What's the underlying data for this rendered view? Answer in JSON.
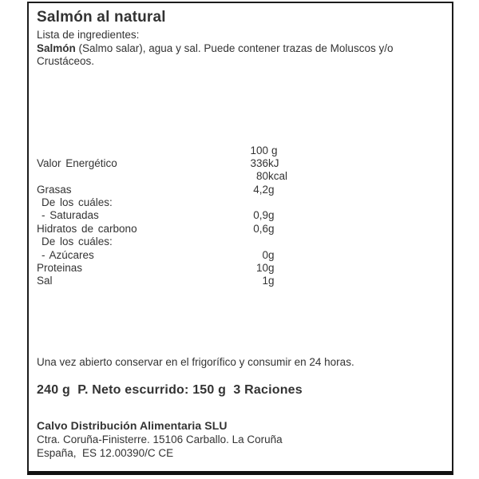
{
  "label": {
    "title": "Salmón al natural",
    "ingredients": {
      "heading": "Lista de ingredientes:",
      "bold_lead": "Salmón",
      "text": " (Salmo salar), agua y sal. Puede contener trazas de Moluscos y/o Crustáceos."
    },
    "nutrition": {
      "column_header": {
        "num": "100",
        "unit": "g"
      },
      "rows": [
        {
          "label": "Valor Energético",
          "num": "336",
          "unit": "kJ"
        },
        {
          "label": "",
          "num": "80",
          "unit": "kcal"
        },
        {
          "label": "Grasas",
          "num": "4,2",
          "unit": "g"
        },
        {
          "label": "De los cuáles:",
          "num": "",
          "unit": ""
        },
        {
          "label": "- Saturadas",
          "num": "0,9",
          "unit": "g"
        },
        {
          "label": "Hidratos de carbono",
          "num": "0,6",
          "unit": "g"
        },
        {
          "label": "De los cuáles:",
          "num": "",
          "unit": ""
        },
        {
          "label": "- Azúcares",
          "num": "0",
          "unit": "g"
        },
        {
          "label": "Proteinas",
          "num": "10",
          "unit": "g"
        },
        {
          "label": "Sal",
          "num": "1",
          "unit": "g"
        }
      ]
    },
    "storage_note": "Una vez abierto conservar en el frigorífico y consumir en 24 horas.",
    "weight_line": "240 g  P. Neto escurrido: 150 g  3 Raciones",
    "distributor": {
      "name": "Calvo Distribución Alimentaria SLU",
      "address": "Ctra. Coruña-Finisterre. 15106 Carballo. La Coruña",
      "country_line": "España,  ES 12.00390/C CE"
    }
  },
  "colors": {
    "text": "#333333",
    "border": "#1c1c1c",
    "background": "#ffffff"
  }
}
